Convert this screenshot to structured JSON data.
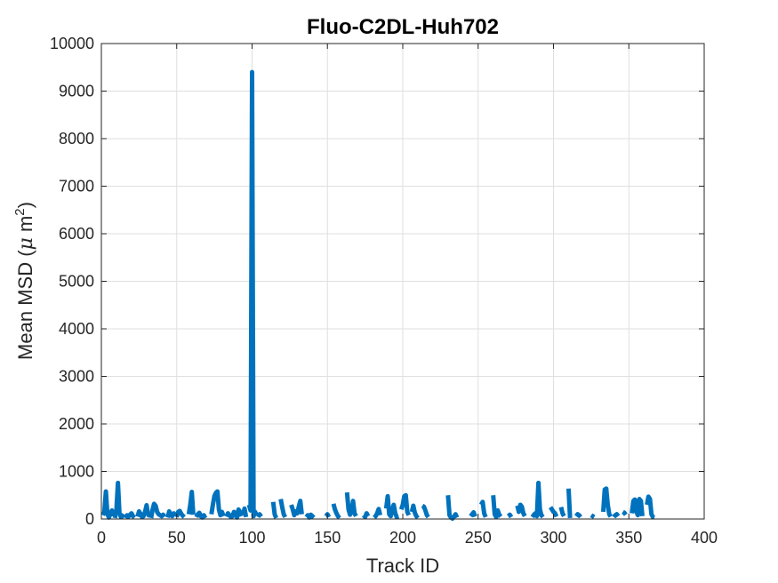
{
  "chart_data": {
    "type": "line",
    "title": "Fluo-C2DL-Huh702",
    "xlabel": "Track ID",
    "ylabel_main": "Mean MSD (",
    "ylabel_mu": "μ",
    "ylabel_unit": " m",
    "ylabel_exp": "2",
    "ylabel_close": ")",
    "xlim": [
      0,
      400
    ],
    "ylim": [
      0,
      10000
    ],
    "xticks": [
      "0",
      "50",
      "100",
      "150",
      "200",
      "250",
      "300",
      "350",
      "400"
    ],
    "yticks": [
      "0",
      "1000",
      "2000",
      "3000",
      "4000",
      "5000",
      "6000",
      "7000",
      "8000",
      "9000",
      "10000"
    ],
    "grid": true,
    "line_color": "#0072BD",
    "series": [
      {
        "segments": [
          [
            [
              1,
              80
            ],
            [
              2,
              150
            ],
            [
              3,
              580
            ],
            [
              4,
              100
            ],
            [
              5,
              30
            ],
            [
              6,
              120
            ],
            [
              7,
              180
            ],
            [
              8,
              60
            ]
          ],
          [
            [
              9,
              20
            ],
            [
              10,
              200
            ],
            [
              11,
              760
            ],
            [
              12,
              120
            ],
            [
              13,
              40
            ],
            [
              14,
              60
            ],
            [
              15,
              100
            ]
          ],
          [
            [
              16,
              20
            ],
            [
              17,
              80
            ],
            [
              18,
              50
            ],
            [
              19,
              90
            ],
            [
              20,
              120
            ],
            [
              21,
              60
            ],
            [
              22,
              30
            ]
          ],
          [
            [
              24,
              50
            ],
            [
              25,
              160
            ],
            [
              26,
              110
            ],
            [
              27,
              40
            ],
            [
              28,
              60
            ],
            [
              29,
              150
            ],
            [
              30,
              290
            ],
            [
              31,
              100
            ],
            [
              32,
              50
            ]
          ],
          [
            [
              33,
              20
            ],
            [
              34,
              200
            ],
            [
              35,
              320
            ],
            [
              36,
              280
            ],
            [
              37,
              150
            ],
            [
              38,
              100
            ],
            [
              39,
              80
            ],
            [
              40,
              60
            ],
            [
              41,
              90
            ],
            [
              42,
              50
            ]
          ],
          [
            [
              44,
              30
            ],
            [
              45,
              160
            ],
            [
              46,
              100
            ],
            [
              47,
              60
            ],
            [
              48,
              120
            ],
            [
              49,
              80
            ]
          ],
          [
            [
              50,
              40
            ],
            [
              51,
              150
            ],
            [
              52,
              170
            ],
            [
              53,
              110
            ],
            [
              54,
              70
            ],
            [
              55,
              40
            ]
          ],
          [
            [
              58,
              100
            ],
            [
              59,
              300
            ],
            [
              60,
              570
            ],
            [
              61,
              90
            ]
          ],
          [
            [
              63,
              40
            ],
            [
              64,
              100
            ],
            [
              65,
              130
            ],
            [
              66,
              60
            ],
            [
              67,
              30
            ],
            [
              68,
              80
            ],
            [
              69,
              20
            ]
          ],
          [
            [
              73,
              100
            ],
            [
              74,
              300
            ],
            [
              75,
              480
            ],
            [
              76,
              550
            ],
            [
              77,
              580
            ],
            [
              78,
              200
            ],
            [
              79,
              80
            ],
            [
              80,
              150
            ],
            [
              81,
              60
            ]
          ],
          [
            [
              83,
              50
            ],
            [
              84,
              120
            ],
            [
              85,
              80
            ],
            [
              86,
              40
            ],
            [
              87,
              60
            ],
            [
              88,
              150
            ],
            [
              89,
              90
            ],
            [
              90,
              30
            ],
            [
              91,
              200
            ],
            [
              92,
              150
            ],
            [
              93,
              60
            ]
          ],
          [
            [
              94,
              100
            ],
            [
              95,
              220
            ],
            [
              96,
              40
            ]
          ],
          [
            [
              98,
              300
            ],
            [
              99,
              180
            ],
            [
              100,
              9400
            ],
            [
              101,
              60
            ],
            [
              102,
              150
            ],
            [
              103,
              80
            ]
          ],
          [
            [
              104,
              40
            ],
            [
              105,
              100
            ],
            [
              106,
              50
            ]
          ],
          [
            [
              114,
              360
            ],
            [
              115,
              100
            ],
            [
              116,
              20
            ]
          ],
          [
            [
              119,
              420
            ],
            [
              120,
              250
            ],
            [
              121,
              100
            ],
            [
              122,
              40
            ]
          ],
          [
            [
              126,
              300
            ],
            [
              127,
              200
            ],
            [
              128,
              80
            ],
            [
              129,
              160
            ],
            [
              130,
              120
            ],
            [
              131,
              260
            ],
            [
              132,
              380
            ],
            [
              133,
              100
            ]
          ],
          [
            [
              136,
              40
            ],
            [
              137,
              80
            ],
            [
              138,
              30
            ],
            [
              139,
              90
            ],
            [
              140,
              60
            ],
            [
              141,
              30
            ]
          ],
          [
            [
              149,
              60
            ],
            [
              150,
              100
            ],
            [
              151,
              40
            ]
          ],
          [
            [
              154,
              320
            ],
            [
              155,
              200
            ],
            [
              156,
              120
            ],
            [
              157,
              60
            ],
            [
              158,
              20
            ]
          ],
          [
            [
              163,
              560
            ],
            [
              164,
              200
            ],
            [
              165,
              90
            ],
            [
              166,
              150
            ],
            [
              167,
              380
            ],
            [
              168,
              120
            ],
            [
              169,
              60
            ]
          ],
          [
            [
              174,
              80
            ],
            [
              175,
              40
            ],
            [
              176,
              120
            ],
            [
              177,
              60
            ]
          ],
          [
            [
              181,
              30
            ],
            [
              182,
              60
            ],
            [
              183,
              120
            ],
            [
              184,
              210
            ],
            [
              185,
              80
            ]
          ],
          [
            [
              189,
              220
            ],
            [
              190,
              480
            ],
            [
              191,
              100
            ],
            [
              192,
              60
            ],
            [
              193,
              200
            ],
            [
              194,
              300
            ],
            [
              195,
              120
            ],
            [
              196,
              40
            ],
            [
              197,
              60
            ]
          ],
          [
            [
              199,
              200
            ],
            [
              200,
              300
            ],
            [
              201,
              480
            ],
            [
              202,
              500
            ],
            [
              203,
              150
            ],
            [
              204,
              80
            ]
          ],
          [
            [
              206,
              150
            ],
            [
              207,
              280
            ],
            [
              208,
              130
            ],
            [
              209,
              60
            ],
            [
              210,
              20
            ]
          ],
          [
            [
              213,
              280
            ],
            [
              214,
              260
            ],
            [
              215,
              180
            ],
            [
              216,
              80
            ],
            [
              217,
              40
            ]
          ],
          [
            [
              230,
              500
            ],
            [
              231,
              80
            ],
            [
              232,
              30
            ],
            [
              233,
              10
            ],
            [
              234,
              50
            ],
            [
              235,
              100
            ],
            [
              236,
              30
            ]
          ],
          [
            [
              245,
              60
            ],
            [
              246,
              100
            ],
            [
              247,
              140
            ],
            [
              248,
              50
            ]
          ],
          [
            [
              252,
              300
            ],
            [
              253,
              360
            ],
            [
              254,
              120
            ],
            [
              255,
              40
            ]
          ],
          [
            [
              260,
              500
            ],
            [
              261,
              100
            ],
            [
              262,
              40
            ],
            [
              263,
              180
            ],
            [
              264,
              90
            ],
            [
              265,
              50
            ]
          ],
          [
            [
              270,
              60
            ],
            [
              271,
              90
            ],
            [
              272,
              40
            ]
          ],
          [
            [
              276,
              280
            ],
            [
              277,
              150
            ],
            [
              278,
              300
            ],
            [
              279,
              260
            ],
            [
              280,
              120
            ],
            [
              281,
              60
            ]
          ],
          [
            [
              286,
              40
            ],
            [
              287,
              90
            ],
            [
              288,
              120
            ],
            [
              289,
              60
            ],
            [
              290,
              760
            ],
            [
              291,
              200
            ],
            [
              292,
              80
            ],
            [
              293,
              40
            ]
          ],
          [
            [
              298,
              250
            ],
            [
              299,
              200
            ],
            [
              300,
              150
            ],
            [
              301,
              120
            ],
            [
              302,
              50
            ]
          ],
          [
            [
              305,
              250
            ],
            [
              306,
              120
            ],
            [
              307,
              60
            ]
          ],
          [
            [
              310,
              640
            ],
            [
              311,
              20
            ]
          ],
          [
            [
              315,
              60
            ],
            [
              316,
              100
            ],
            [
              317,
              80
            ],
            [
              318,
              40
            ]
          ],
          [
            [
              325,
              80
            ],
            [
              326,
              60
            ],
            [
              327,
              40
            ]
          ],
          [
            [
              333,
              150
            ],
            [
              334,
              620
            ],
            [
              335,
              640
            ],
            [
              336,
              300
            ],
            [
              337,
              100
            ],
            [
              338,
              50
            ]
          ],
          [
            [
              340,
              40
            ],
            [
              341,
              80
            ],
            [
              342,
              100
            ],
            [
              343,
              60
            ]
          ],
          [
            [
              346,
              150
            ],
            [
              347,
              130
            ],
            [
              348,
              90
            ]
          ],
          [
            [
              352,
              120
            ],
            [
              353,
              380
            ],
            [
              354,
              410
            ],
            [
              355,
              150
            ],
            [
              356,
              80
            ],
            [
              357,
              420
            ],
            [
              358,
              380
            ],
            [
              359,
              60
            ]
          ],
          [
            [
              362,
              300
            ],
            [
              363,
              470
            ],
            [
              364,
              420
            ],
            [
              365,
              100
            ],
            [
              366,
              40
            ],
            [
              367,
              30
            ]
          ]
        ]
      }
    ]
  }
}
